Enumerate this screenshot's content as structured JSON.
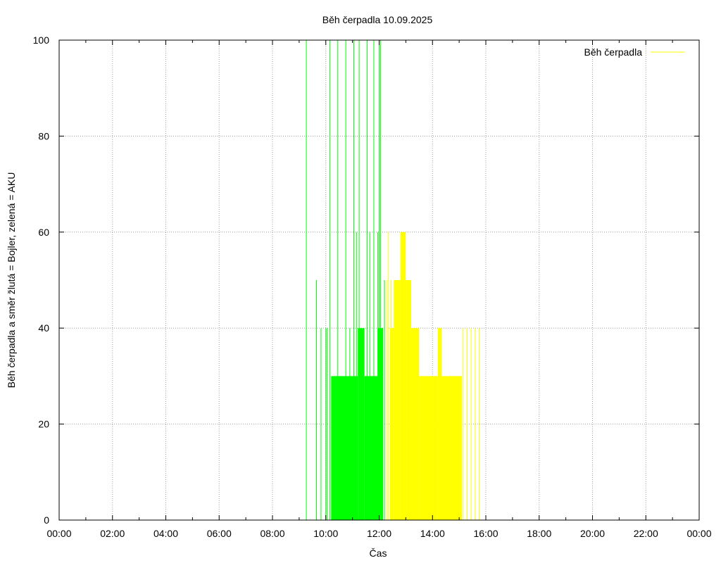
{
  "chart_data": {
    "type": "bar",
    "title": "Běh čerpadla 10.09.2025",
    "xlabel": "Čas",
    "ylabel": "Běh čerpadla a směr žlutá = Bojler, zelená = AKU",
    "xlim": [
      0,
      24
    ],
    "ylim": [
      0,
      100
    ],
    "x_ticks": [
      "00:00",
      "02:00",
      "04:00",
      "06:00",
      "08:00",
      "10:00",
      "12:00",
      "14:00",
      "16:00",
      "18:00",
      "20:00",
      "22:00",
      "00:00"
    ],
    "y_ticks": [
      "0",
      "20",
      "40",
      "60",
      "80",
      "100"
    ],
    "grid": true,
    "legend": {
      "position": "top-right",
      "label": "Běh čerpadla",
      "color": "#ffff00"
    },
    "colors": {
      "bojler": "#ffff00",
      "aku": "#00ff00"
    },
    "series": [
      {
        "name": "AKU",
        "color": "#00ff00",
        "spikes": [
          [
            9.27,
            100
          ],
          [
            9.65,
            50
          ],
          [
            9.82,
            40
          ],
          [
            10.0,
            40
          ],
          [
            10.05,
            40
          ],
          [
            10.15,
            100
          ],
          [
            10.45,
            100
          ],
          [
            10.75,
            100
          ],
          [
            10.9,
            40
          ],
          [
            11.05,
            100
          ],
          [
            11.15,
            60
          ],
          [
            11.25,
            100
          ],
          [
            11.55,
            100
          ],
          [
            11.65,
            60
          ],
          [
            11.8,
            100
          ],
          [
            11.95,
            60
          ],
          [
            12.0,
            100
          ],
          [
            12.05,
            100
          ],
          [
            12.2,
            50
          ]
        ],
        "blocks": [
          [
            10.2,
            10.9,
            30
          ],
          [
            10.9,
            11.2,
            30
          ],
          [
            11.2,
            11.45,
            40
          ],
          [
            11.45,
            11.95,
            30
          ],
          [
            11.95,
            12.15,
            40
          ]
        ]
      },
      {
        "name": "Bojler",
        "color": "#ffff00",
        "spikes": [
          [
            12.3,
            50
          ],
          [
            12.35,
            60
          ],
          [
            12.45,
            50
          ],
          [
            12.75,
            40
          ],
          [
            13.15,
            40
          ],
          [
            13.35,
            30
          ],
          [
            13.6,
            30
          ],
          [
            14.3,
            30
          ],
          [
            15.15,
            40
          ],
          [
            15.3,
            40
          ],
          [
            15.45,
            40
          ],
          [
            15.6,
            40
          ],
          [
            15.75,
            40
          ]
        ],
        "blocks": [
          [
            12.4,
            12.55,
            40
          ],
          [
            12.55,
            12.8,
            50
          ],
          [
            12.8,
            13.0,
            60
          ],
          [
            13.0,
            13.2,
            50
          ],
          [
            13.2,
            13.5,
            40
          ],
          [
            13.5,
            14.2,
            30
          ],
          [
            14.2,
            14.35,
            40
          ],
          [
            14.35,
            15.1,
            30
          ]
        ]
      }
    ]
  }
}
